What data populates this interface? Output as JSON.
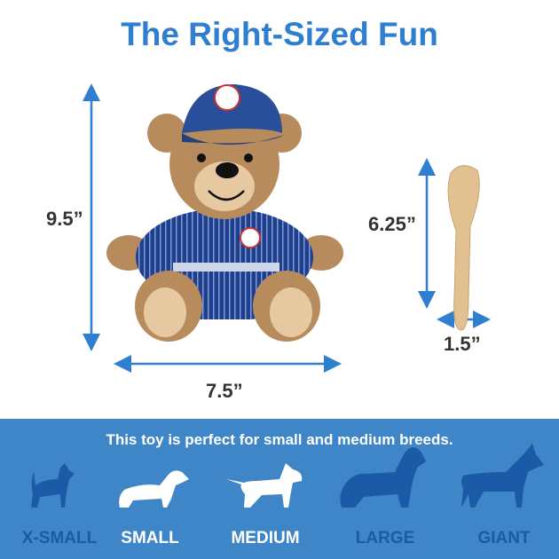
{
  "title": "The Right-Sized Fun",
  "dimensions": {
    "bear_height": "9.5”",
    "bear_width": "7.5”",
    "bat_height": "6.25”",
    "bat_width": "1.5”"
  },
  "colors": {
    "accent": "#2e7fcf",
    "band": "#3f86c8",
    "inactive_dog": "#1a5aa6",
    "active_dog": "#ffffff"
  },
  "band": {
    "tagline": "This toy is perfect for small and medium breeds.",
    "sizes": [
      {
        "label": "X-SMALL",
        "active": false
      },
      {
        "label": "SMALL",
        "active": true
      },
      {
        "label": "MEDIUM",
        "active": true
      },
      {
        "label": "LARGE",
        "active": false
      },
      {
        "label": "GIANT",
        "active": false
      }
    ]
  }
}
